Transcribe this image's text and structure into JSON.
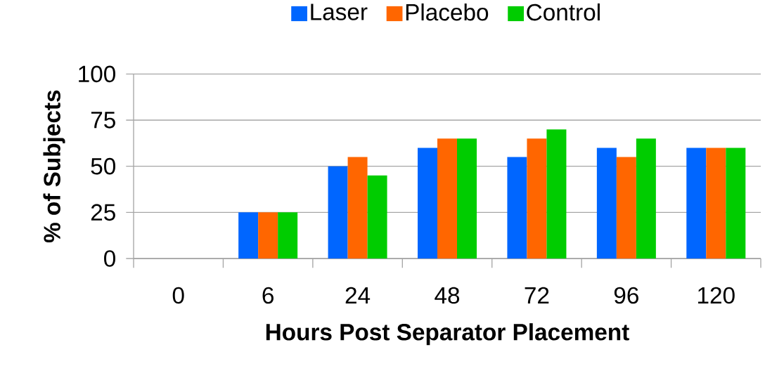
{
  "chart_data": {
    "type": "bar",
    "xlabel": "Hours Post Separator Placement",
    "ylabel": "% of Subjects",
    "categories": [
      "0",
      "6",
      "24",
      "48",
      "72",
      "96",
      "120"
    ],
    "series": [
      {
        "name": "Laser",
        "color": "#0066ff",
        "values": [
          0,
          25,
          50,
          60,
          55,
          60,
          60
        ]
      },
      {
        "name": "Placebo",
        "color": "#ff6600",
        "values": [
          0,
          25,
          55,
          65,
          65,
          55,
          60
        ]
      },
      {
        "name": "Control",
        "color": "#00cc00",
        "values": [
          0,
          25,
          45,
          65,
          70,
          65,
          60
        ]
      }
    ],
    "ylim": [
      0,
      100
    ],
    "yticks": [
      0,
      25,
      50,
      75,
      100
    ],
    "grid": "y",
    "legend": "top"
  }
}
